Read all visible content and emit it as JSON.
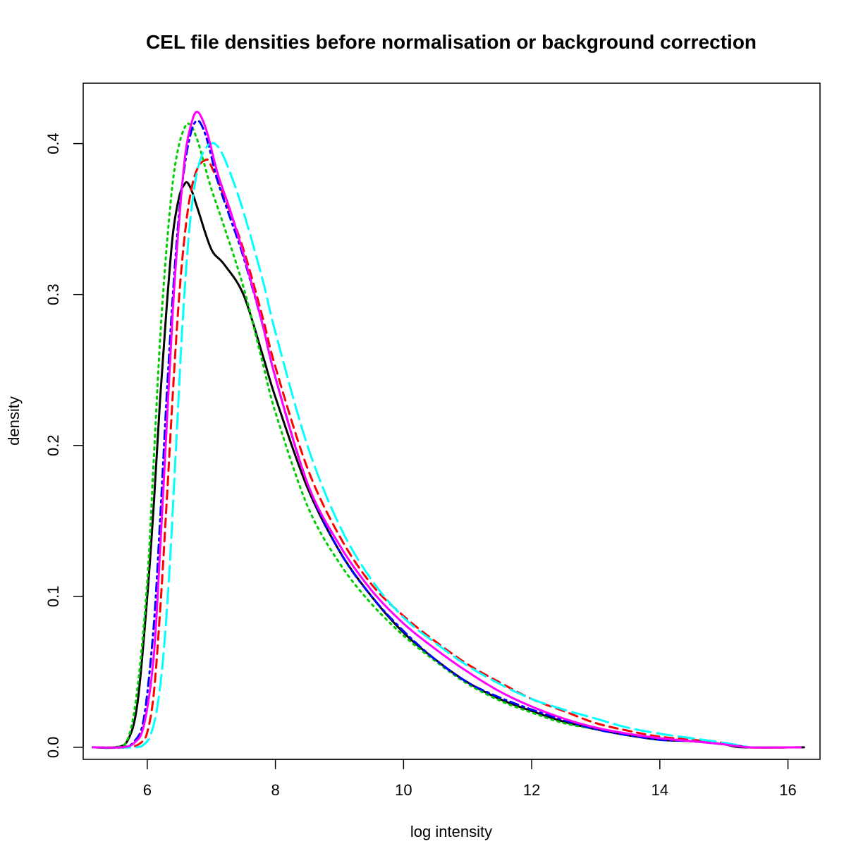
{
  "chart_data": {
    "type": "line",
    "title": "CEL file densities before normalisation or background correction",
    "xlabel": "log intensity",
    "ylabel": "density",
    "xlim": [
      5.0,
      16.5
    ],
    "ylim": [
      -0.008,
      0.44
    ],
    "x_ticks": [
      "6",
      "8",
      "10",
      "12",
      "14",
      "16"
    ],
    "y_ticks": [
      "0.0",
      "0.1",
      "0.2",
      "0.3",
      "0.4"
    ],
    "grid": false,
    "legend": "none",
    "series": [
      {
        "color": "#000000",
        "dash": "solid",
        "x": [
          5.15,
          5.5,
          5.7,
          5.85,
          6.0,
          6.1,
          6.2,
          6.3,
          6.4,
          6.5,
          6.58,
          6.63,
          6.7,
          6.8,
          7.0,
          7.2,
          7.5,
          7.8,
          8.0,
          8.5,
          9.0,
          9.5,
          10.0,
          10.5,
          11.0,
          11.5,
          12.0,
          12.5,
          13.0,
          13.5,
          14.0,
          14.5,
          15.0,
          15.3,
          16.25
        ],
        "y": [
          0.0,
          0.0,
          0.005,
          0.03,
          0.1,
          0.16,
          0.23,
          0.29,
          0.34,
          0.365,
          0.373,
          0.374,
          0.368,
          0.355,
          0.33,
          0.32,
          0.3,
          0.26,
          0.232,
          0.172,
          0.13,
          0.1,
          0.076,
          0.058,
          0.043,
          0.032,
          0.024,
          0.017,
          0.012,
          0.008,
          0.005,
          0.004,
          0.002,
          0.0,
          0.0
        ]
      },
      {
        "color": "#ff0000",
        "dash": "dashed",
        "x": [
          5.15,
          5.7,
          5.9,
          6.0,
          6.1,
          6.2,
          6.3,
          6.4,
          6.5,
          6.6,
          6.7,
          6.8,
          6.9,
          6.95,
          7.0,
          7.2,
          7.5,
          7.8,
          8.0,
          8.5,
          9.0,
          9.5,
          10.0,
          10.5,
          11.0,
          11.5,
          12.0,
          12.5,
          13.0,
          13.5,
          14.0,
          14.5,
          15.0,
          15.4,
          16.2
        ],
        "y": [
          0.0,
          0.0,
          0.003,
          0.01,
          0.035,
          0.09,
          0.16,
          0.235,
          0.3,
          0.345,
          0.372,
          0.385,
          0.389,
          0.389,
          0.385,
          0.365,
          0.33,
          0.285,
          0.252,
          0.185,
          0.14,
          0.108,
          0.087,
          0.07,
          0.055,
          0.043,
          0.032,
          0.024,
          0.016,
          0.011,
          0.007,
          0.005,
          0.003,
          0.0,
          0.0
        ]
      },
      {
        "color": "#00cd00",
        "dash": "dotted",
        "x": [
          5.15,
          5.5,
          5.7,
          5.85,
          6.0,
          6.1,
          6.2,
          6.3,
          6.4,
          6.5,
          6.6,
          6.65,
          6.7,
          6.8,
          6.9,
          7.0,
          7.2,
          7.5,
          7.8,
          8.0,
          8.5,
          9.0,
          9.5,
          10.0,
          10.5,
          11.0,
          11.5,
          12.0,
          12.5,
          13.0,
          13.5,
          14.0,
          14.5,
          15.0,
          15.4
        ],
        "y": [
          0.0,
          0.0,
          0.006,
          0.04,
          0.11,
          0.19,
          0.27,
          0.33,
          0.375,
          0.4,
          0.412,
          0.413,
          0.411,
          0.4,
          0.385,
          0.37,
          0.345,
          0.305,
          0.255,
          0.222,
          0.16,
          0.122,
          0.095,
          0.074,
          0.057,
          0.042,
          0.031,
          0.023,
          0.016,
          0.012,
          0.008,
          0.006,
          0.004,
          0.002,
          0.0
        ]
      },
      {
        "color": "#0000ff",
        "dash": "dotdash",
        "x": [
          5.15,
          5.6,
          5.8,
          5.95,
          6.1,
          6.2,
          6.3,
          6.4,
          6.5,
          6.6,
          6.7,
          6.78,
          6.85,
          6.95,
          7.1,
          7.3,
          7.5,
          7.8,
          8.0,
          8.5,
          9.0,
          9.5,
          10.0,
          10.5,
          11.0,
          11.5,
          12.0,
          12.5,
          13.0,
          13.5,
          14.0,
          14.5,
          15.0,
          15.4
        ],
        "y": [
          0.0,
          0.0,
          0.004,
          0.02,
          0.08,
          0.15,
          0.23,
          0.3,
          0.355,
          0.39,
          0.41,
          0.415,
          0.412,
          0.4,
          0.375,
          0.35,
          0.325,
          0.28,
          0.245,
          0.175,
          0.13,
          0.1,
          0.077,
          0.058,
          0.043,
          0.033,
          0.025,
          0.018,
          0.012,
          0.008,
          0.005,
          0.004,
          0.002,
          0.0
        ]
      },
      {
        "color": "#00ffff",
        "dash": "longdash",
        "x": [
          5.15,
          5.8,
          5.95,
          6.05,
          6.15,
          6.25,
          6.35,
          6.45,
          6.55,
          6.65,
          6.75,
          6.85,
          6.95,
          7.0,
          7.05,
          7.15,
          7.3,
          7.5,
          7.8,
          8.0,
          8.5,
          9.0,
          9.5,
          10.0,
          10.5,
          11.0,
          11.5,
          12.0,
          12.5,
          13.0,
          13.5,
          14.0,
          14.5,
          15.0,
          15.4
        ],
        "y": [
          0.0,
          0.0,
          0.002,
          0.008,
          0.025,
          0.06,
          0.12,
          0.2,
          0.28,
          0.34,
          0.375,
          0.392,
          0.399,
          0.4,
          0.4,
          0.395,
          0.38,
          0.355,
          0.31,
          0.275,
          0.2,
          0.147,
          0.111,
          0.086,
          0.069,
          0.054,
          0.042,
          0.032,
          0.025,
          0.019,
          0.013,
          0.009,
          0.006,
          0.003,
          0.0
        ]
      },
      {
        "color": "#ff00ff",
        "dash": "solid",
        "x": [
          5.15,
          5.6,
          5.8,
          5.95,
          6.1,
          6.2,
          6.3,
          6.4,
          6.5,
          6.6,
          6.7,
          6.77,
          6.85,
          6.95,
          7.1,
          7.3,
          7.5,
          7.8,
          8.0,
          8.5,
          9.0,
          9.5,
          10.0,
          10.5,
          11.0,
          11.5,
          12.0,
          12.5,
          13.0,
          13.5,
          14.0,
          14.5,
          15.0,
          15.4,
          16.2
        ],
        "y": [
          0.0,
          0.0,
          0.003,
          0.015,
          0.06,
          0.13,
          0.21,
          0.29,
          0.35,
          0.395,
          0.415,
          0.421,
          0.417,
          0.405,
          0.38,
          0.355,
          0.327,
          0.28,
          0.245,
          0.175,
          0.134,
          0.104,
          0.082,
          0.065,
          0.05,
          0.037,
          0.027,
          0.019,
          0.013,
          0.009,
          0.006,
          0.004,
          0.002,
          0.0,
          0.0
        ]
      }
    ]
  }
}
